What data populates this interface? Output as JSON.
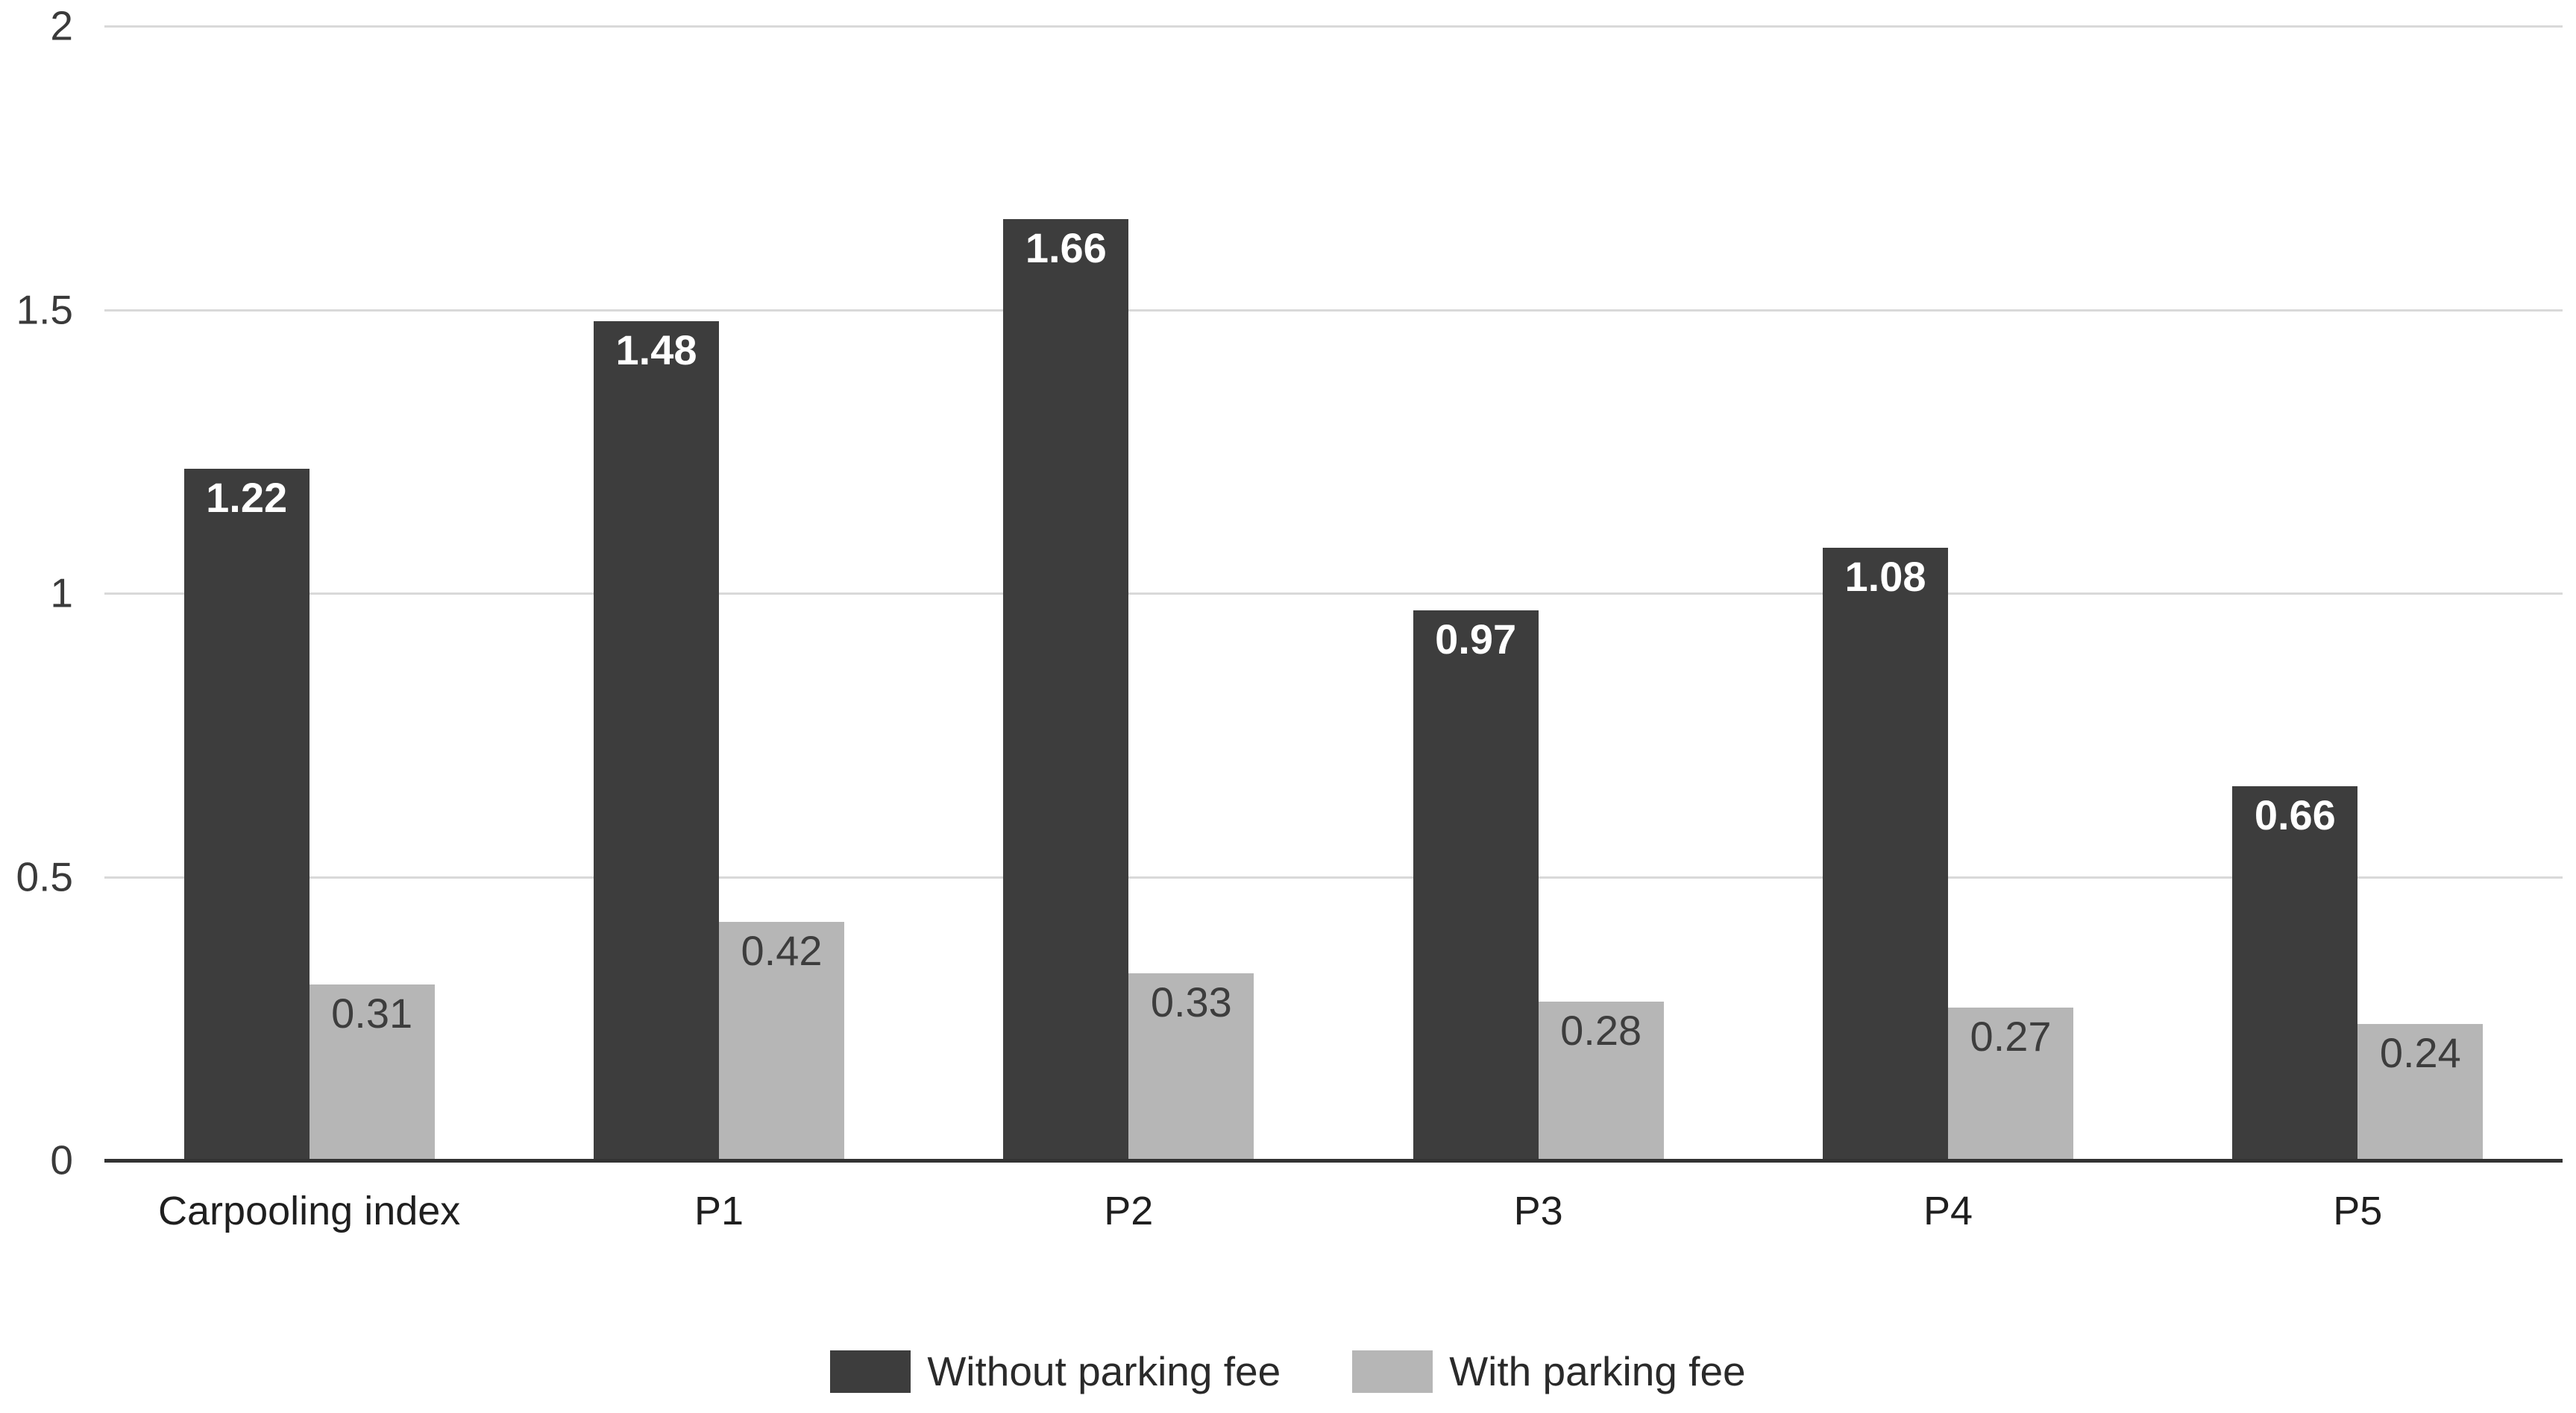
{
  "chart_data": {
    "type": "bar",
    "categories": [
      "Carpooling index",
      "P1",
      "P2",
      "P3",
      "P4",
      "P5"
    ],
    "series": [
      {
        "name": "Without parking fee",
        "color": "#3d3d3d",
        "label_color": "#ffffff",
        "label_weight": "700",
        "values": [
          1.22,
          1.48,
          1.66,
          0.97,
          1.08,
          0.66
        ]
      },
      {
        "name": "With parking fee",
        "color": "#b6b6b6",
        "label_color": "#3d3d3d",
        "label_weight": "400",
        "values": [
          0.31,
          0.42,
          0.33,
          0.28,
          0.27,
          0.24
        ]
      }
    ],
    "title": "",
    "xlabel": "",
    "ylabel": "",
    "ylim": [
      0,
      2
    ],
    "yticks": [
      {
        "label": "2",
        "value": 2
      },
      {
        "label": "1.5",
        "value": 1.5
      },
      {
        "label": "1",
        "value": 1
      },
      {
        "label": "0.5",
        "value": 0.5
      },
      {
        "label": "0",
        "value": 0
      }
    ],
    "grid": "on",
    "legend_position": "bottom"
  },
  "colors": {
    "background": "#ffffff",
    "gridline": "#d9d9d9",
    "axis_line": "#333333",
    "ytick_label": "#3a3a3a",
    "category_label": "#1f1f1f",
    "legend_label": "#2a2a2a"
  }
}
